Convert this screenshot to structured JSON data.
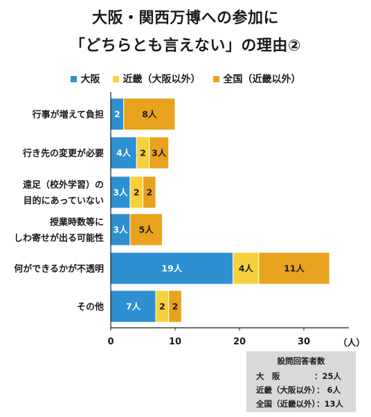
{
  "title_line1": "大阪・関西万博への参加に",
  "title_line2": "「どちらとも言えない」の理由②",
  "legend": [
    {
      "label": "大阪",
      "color": "#2e8fd1"
    },
    {
      "label": "近畿（大阪以外）",
      "color": "#f7d13c"
    },
    {
      "label": "全国（近畿以外）",
      "color": "#e9a21d"
    }
  ],
  "respondents": {
    "title": "設問回答者数",
    "rows": [
      {
        "label": "大　阪",
        "value": "：25人"
      },
      {
        "label": "近畿（大阪以外）",
        "value": "：  6人"
      },
      {
        "label": "全国（近畿以外）",
        "value": "：13人"
      }
    ]
  },
  "chart_data": {
    "type": "bar",
    "orientation": "horizontal",
    "stacked": true,
    "categories": [
      [
        "行事が増えて負担"
      ],
      [
        "行き先の変更が必要"
      ],
      [
        "遠足（校外学習）の",
        "目的にあっていない"
      ],
      [
        "授業時数等に",
        "しわ寄せが出る可能性"
      ],
      [
        "何ができるかが不透明"
      ],
      [
        "その他"
      ]
    ],
    "series": [
      {
        "name": "大阪",
        "color": "#2e8fd1",
        "label_color": "#ffffff",
        "values": [
          2,
          4,
          3,
          3,
          19,
          7
        ],
        "labels": [
          "2",
          "4人",
          "3人",
          "3人",
          "19人",
          "7人"
        ]
      },
      {
        "name": "近畿（大阪以外）",
        "color": "#f7d13c",
        "label_color": "#1a1a1a",
        "values": [
          0,
          2,
          2,
          0,
          4,
          2
        ],
        "labels": [
          "",
          "2",
          "2",
          "",
          "4人",
          "2"
        ]
      },
      {
        "name": "全国（近畿以外）",
        "color": "#e9a21d",
        "label_color": "#1a1a1a",
        "values": [
          8,
          3,
          2,
          5,
          11,
          2
        ],
        "labels": [
          "8人",
          "3人",
          "2",
          "5人",
          "11人",
          "2"
        ]
      }
    ],
    "xlim": [
      0,
      37
    ],
    "xticks": [
      0,
      10,
      20,
      30
    ],
    "x_unit": "（人）",
    "grid": false
  }
}
